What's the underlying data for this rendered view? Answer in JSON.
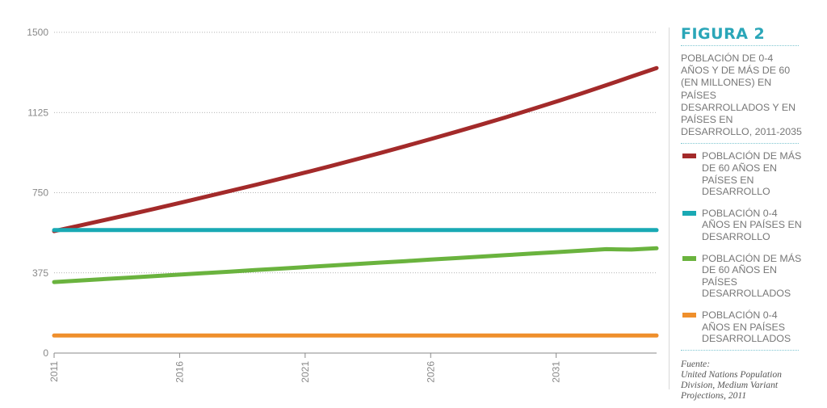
{
  "figure_label": "FIGURA 2",
  "subtitle": "POBLACIÓN DE 0-4 AÑOS Y DE MÁS DE 60 (EN MILLONES) EN PAÍSES DESARROLLADOS  Y EN PAÍSES EN DESARROLLO, 2011-2035",
  "source_label": "Fuente:",
  "source_text": "United Nations Population Division, Medium Variant Projections, 2011",
  "chart_data": {
    "type": "line",
    "x": [
      2011,
      2012,
      2013,
      2014,
      2015,
      2016,
      2017,
      2018,
      2019,
      2020,
      2021,
      2022,
      2023,
      2024,
      2025,
      2026,
      2027,
      2028,
      2029,
      2030,
      2031,
      2032,
      2033,
      2034,
      2035
    ],
    "xlim": [
      2011,
      2035
    ],
    "xticks": [
      "2011",
      "2016",
      "2021",
      "2026",
      "2031"
    ],
    "ylim": [
      0,
      1500
    ],
    "yticks": [
      "0",
      "375",
      "750",
      "1125",
      "1500"
    ],
    "grid": true,
    "legend_position": "right",
    "series": [
      {
        "name": "POBLACIÓN DE MÁS DE 60 AÑOS EN PAÍSES EN DESARROLLO",
        "color": "#a32a2a",
        "values": [
          570,
          596,
          622,
          648,
          675,
          702,
          730,
          758,
          786,
          815,
          844,
          874,
          905,
          936,
          968,
          1001,
          1034,
          1068,
          1103,
          1139,
          1176,
          1214,
          1253,
          1293,
          1333
        ]
      },
      {
        "name": "POBLACIÓN 0-4 AÑOS EN PAÍSES EN DESARROLLO",
        "color": "#19a9b4",
        "values": [
          575,
          575,
          575,
          575,
          575,
          575,
          575,
          575,
          575,
          575,
          575,
          575,
          575,
          575,
          575,
          575,
          575,
          575,
          575,
          575,
          575,
          575,
          575,
          575,
          575
        ]
      },
      {
        "name": "POBLACIÓN DE MÁS DE 60 AÑOS EN PAÍSES DESARROLLADOS",
        "color": "#6ab33e",
        "values": [
          332,
          339,
          346,
          353,
          360,
          367,
          374,
          381,
          388,
          395,
          402,
          409,
          416,
          423,
          430,
          437,
          444,
          451,
          458,
          465,
          472,
          479,
          486,
          484,
          490
        ]
      },
      {
        "name": "POBLACIÓN 0-4 AÑOS EN PAÍSES DESARROLLADOS",
        "color": "#ef8f2c",
        "values": [
          82,
          82,
          82,
          82,
          82,
          82,
          82,
          82,
          82,
          82,
          82,
          82,
          82,
          82,
          82,
          82,
          82,
          82,
          82,
          82,
          82,
          82,
          82,
          82,
          82
        ]
      }
    ]
  }
}
